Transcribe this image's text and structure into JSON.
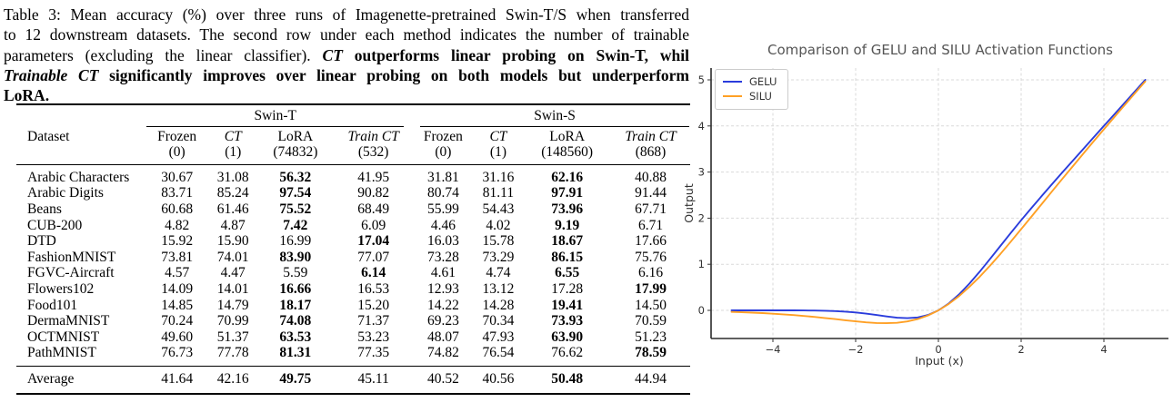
{
  "caption": {
    "lines": [
      [
        {
          "t": "Table 3: Mean accuracy (%) over three runs of Imagenette-pretrained Swin-T/S when transferred",
          "s": "n"
        }
      ],
      [
        {
          "t": "to 12 downstream datasets. The second row under each method indicates the number of trainable",
          "s": "n"
        }
      ],
      [
        {
          "t": "parameters (excluding the linear classifier). ",
          "s": "n"
        },
        {
          "t": "CT",
          "s": "bi"
        },
        {
          "t": " outperforms linear probing on Swin-T, whil",
          "s": "b"
        }
      ],
      [
        {
          "t": "Trainable CT",
          "s": "bi"
        },
        {
          "t": " significantly improves over linear probing on both models but underperform",
          "s": "b"
        }
      ],
      [
        {
          "t": "LoRA.",
          "s": "b"
        }
      ]
    ]
  },
  "table": {
    "groups": [
      {
        "label": "Swin-T",
        "span": 4
      },
      {
        "label": "Swin-S",
        "span": 4
      }
    ],
    "columns": [
      {
        "label": "Dataset",
        "sub": ""
      },
      {
        "label": "Frozen",
        "sub": "(0)"
      },
      {
        "label": "CT",
        "sub": "(1)"
      },
      {
        "label": "LoRA",
        "sub": "(74832)"
      },
      {
        "label": "Train CT",
        "sub": "(532)"
      },
      {
        "label": "Frozen",
        "sub": "(0)"
      },
      {
        "label": "CT",
        "sub": "(1)"
      },
      {
        "label": "LoRA",
        "sub": "(148560)"
      },
      {
        "label": "Train CT",
        "sub": "(868)"
      }
    ],
    "rows": [
      {
        "dataset": "Arabic Characters",
        "values": [
          "30.67",
          "31.08",
          "56.32",
          "41.95",
          "31.81",
          "31.16",
          "62.16",
          "40.88"
        ],
        "bold": [
          2,
          6
        ]
      },
      {
        "dataset": "Arabic Digits",
        "values": [
          "83.71",
          "85.24",
          "97.54",
          "90.82",
          "80.74",
          "81.11",
          "97.91",
          "91.44"
        ],
        "bold": [
          2,
          6
        ]
      },
      {
        "dataset": "Beans",
        "values": [
          "60.68",
          "61.46",
          "75.52",
          "68.49",
          "55.99",
          "54.43",
          "73.96",
          "67.71"
        ],
        "bold": [
          2,
          6
        ]
      },
      {
        "dataset": "CUB-200",
        "values": [
          "4.82",
          "4.87",
          "7.42",
          "6.09",
          "4.46",
          "4.02",
          "9.19",
          "6.71"
        ],
        "bold": [
          2,
          6
        ]
      },
      {
        "dataset": "DTD",
        "values": [
          "15.92",
          "15.90",
          "16.99",
          "17.04",
          "16.03",
          "15.78",
          "18.67",
          "17.66"
        ],
        "bold": [
          3,
          6
        ]
      },
      {
        "dataset": "FashionMNIST",
        "values": [
          "73.81",
          "74.01",
          "83.90",
          "77.07",
          "73.28",
          "73.29",
          "86.15",
          "75.76"
        ],
        "bold": [
          2,
          6
        ]
      },
      {
        "dataset": "FGVC-Aircraft",
        "values": [
          "4.57",
          "4.47",
          "5.59",
          "6.14",
          "4.61",
          "4.74",
          "6.55",
          "6.16"
        ],
        "bold": [
          3,
          6
        ]
      },
      {
        "dataset": "Flowers102",
        "values": [
          "14.09",
          "14.01",
          "16.66",
          "16.53",
          "12.93",
          "13.12",
          "17.28",
          "17.99"
        ],
        "bold": [
          2,
          7
        ]
      },
      {
        "dataset": "Food101",
        "values": [
          "14.85",
          "14.79",
          "18.17",
          "15.20",
          "14.22",
          "14.28",
          "19.41",
          "14.50"
        ],
        "bold": [
          2,
          6
        ]
      },
      {
        "dataset": "DermaMNIST",
        "values": [
          "70.24",
          "70.99",
          "74.08",
          "71.37",
          "69.23",
          "70.34",
          "73.93",
          "70.59"
        ],
        "bold": [
          2,
          6
        ]
      },
      {
        "dataset": "OCTMNIST",
        "values": [
          "49.60",
          "51.37",
          "63.53",
          "53.23",
          "48.07",
          "47.93",
          "63.90",
          "51.23"
        ],
        "bold": [
          2,
          6
        ]
      },
      {
        "dataset": "PathMNIST",
        "values": [
          "76.73",
          "77.78",
          "81.31",
          "77.35",
          "74.82",
          "76.54",
          "76.62",
          "78.59"
        ],
        "bold": [
          2,
          7
        ]
      }
    ],
    "average_row": {
      "dataset": "Average",
      "values": [
        "41.64",
        "42.16",
        "49.75",
        "45.11",
        "40.52",
        "40.56",
        "50.48",
        "44.94"
      ],
      "bold": [
        2,
        6
      ]
    }
  },
  "chart_data": {
    "type": "line",
    "title": "Comparison of GELU and SILU Activation Functions",
    "xlabel": "Input (x)",
    "ylabel": "Output",
    "xlim": [
      -5.5,
      5.6
    ],
    "ylim": [
      -0.6,
      5.26
    ],
    "xticks": [
      -4,
      -2,
      0,
      2,
      4
    ],
    "yticks": [
      0,
      1,
      2,
      3,
      4,
      5
    ],
    "grid": true,
    "grid_style": "dashed",
    "legend_position": "upper left",
    "x": [
      -5,
      -4.75,
      -4.5,
      -4.25,
      -4,
      -3.75,
      -3.5,
      -3.25,
      -3,
      -2.75,
      -2.5,
      -2.25,
      -2,
      -1.75,
      -1.5,
      -1.25,
      -1,
      -0.75,
      -0.5,
      -0.25,
      0,
      0.25,
      0.5,
      0.75,
      1,
      1.25,
      1.5,
      1.75,
      2,
      2.25,
      2.5,
      2.75,
      3,
      3.25,
      3.5,
      3.75,
      4,
      4.25,
      4.5,
      4.75,
      5
    ],
    "series": [
      {
        "name": "GELU",
        "color": "#2a3cdc",
        "values": [
          0.0,
          0.0,
          0.0,
          0.0,
          -0.0001,
          -0.0003,
          -0.0008,
          -0.0019,
          -0.004,
          -0.0082,
          -0.0155,
          -0.0275,
          -0.0455,
          -0.0701,
          -0.1002,
          -0.1321,
          -0.1587,
          -0.17,
          -0.1543,
          -0.1003,
          0.0,
          0.1497,
          0.3457,
          0.58,
          0.8413,
          1.1179,
          1.3998,
          1.6799,
          1.9545,
          2.2225,
          2.4845,
          2.7418,
          2.996,
          3.2481,
          3.4992,
          3.7497,
          3.9999,
          4.25,
          4.5,
          4.75,
          5.0
        ]
      },
      {
        "name": "SILU",
        "color": "#ffa025",
        "values": [
          -0.0335,
          -0.0407,
          -0.0494,
          -0.0598,
          -0.0719,
          -0.0862,
          -0.1026,
          -0.1213,
          -0.1423,
          -0.1652,
          -0.1896,
          -0.2145,
          -0.2384,
          -0.2591,
          -0.2736,
          -0.2784,
          -0.2689,
          -0.2406,
          -0.1888,
          -0.1095,
          0.0,
          0.1406,
          0.3112,
          0.5094,
          0.7311,
          0.9716,
          1.2263,
          1.491,
          1.7616,
          2.0355,
          2.3103,
          2.5847,
          2.8577,
          3.1288,
          3.3975,
          3.6631,
          3.9281,
          4.1901,
          4.4506,
          4.7093,
          4.9665
        ]
      }
    ]
  }
}
